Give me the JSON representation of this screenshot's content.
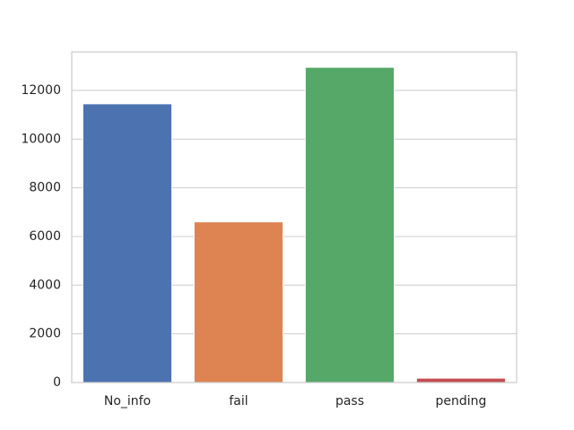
{
  "chart_data": {
    "type": "bar",
    "title": "",
    "xlabel": "",
    "ylabel": "",
    "categories": [
      "No_info",
      "fail",
      "pass",
      "pending"
    ],
    "values": [
      11450,
      6600,
      12950,
      180
    ],
    "colors": [
      "#4c72b0",
      "#dd8452",
      "#55a868",
      "#c44e52"
    ],
    "ylim": [
      0,
      13580
    ],
    "yticks": [
      0,
      2000,
      4000,
      6000,
      8000,
      10000,
      12000
    ],
    "grid": true,
    "legend": "none"
  }
}
